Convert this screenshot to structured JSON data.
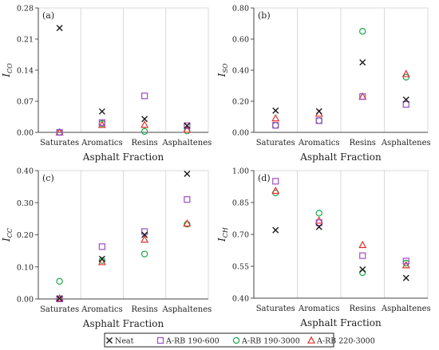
{
  "legend": [
    {
      "name": "Neat",
      "marker": "x",
      "color": "#1a1a1a"
    },
    {
      "name": "A-RB 190-600",
      "marker": "square",
      "color": "#9b4fc8"
    },
    {
      "name": "A-RB 190-3000",
      "marker": "circle",
      "color": "#1aa84a"
    },
    {
      "name": "A-RB 220-3000",
      "marker": "triangle",
      "color": "#e0322c"
    }
  ],
  "chart_data": [
    {
      "type": "scatter",
      "panel_label": "(a)",
      "categories": [
        "Saturates",
        "Aromatics",
        "Resins",
        "Asphaltenes"
      ],
      "xlabel": "Asphalt Fraction",
      "ylabel": "I",
      "ylabel_sub": "CO",
      "ylim": [
        0,
        0.28
      ],
      "yticks": [
        "0.00",
        "0.07",
        "0.14",
        "0.21",
        "0.28"
      ],
      "series": [
        {
          "name": "Neat",
          "values": [
            0.235,
            0.047,
            0.03,
            0.015
          ]
        },
        {
          "name": "A-RB 190-600",
          "values": [
            0.0,
            0.022,
            0.082,
            0.015
          ]
        },
        {
          "name": "A-RB 190-3000",
          "values": [
            0.0,
            0.02,
            0.002,
            0.003
          ]
        },
        {
          "name": "A-RB 220-3000",
          "values": [
            0.0,
            0.017,
            0.017,
            0.006
          ]
        }
      ]
    },
    {
      "type": "scatter",
      "panel_label": "(b)",
      "categories": [
        "Saturates",
        "Aromatics",
        "Resins",
        "Asphaltenes"
      ],
      "xlabel": "Asphalt Fraction",
      "ylabel": "I",
      "ylabel_sub": "SO",
      "ylim": [
        0,
        0.8
      ],
      "yticks": [
        "0.00",
        "0.20",
        "0.40",
        "0.60",
        "0.80"
      ],
      "series": [
        {
          "name": "Neat",
          "values": [
            0.14,
            0.135,
            0.45,
            0.21
          ]
        },
        {
          "name": "A-RB 190-600",
          "values": [
            0.045,
            0.075,
            0.23,
            0.18
          ]
        },
        {
          "name": "A-RB 190-3000",
          "values": [
            0.045,
            0.075,
            0.65,
            0.355
          ]
        },
        {
          "name": "A-RB 220-3000",
          "values": [
            0.09,
            0.12,
            0.23,
            0.375
          ]
        }
      ]
    },
    {
      "type": "scatter",
      "panel_label": "(c)",
      "categories": [
        "Saturates",
        "Aromatics",
        "Resins",
        "Asphaltenes"
      ],
      "xlabel": "Asphalt Fraction",
      "ylabel": "I",
      "ylabel_sub": "CC",
      "ylim": [
        0,
        0.4
      ],
      "yticks": [
        "0.00",
        "0.10",
        "0.20",
        "0.30",
        "0.40"
      ],
      "series": [
        {
          "name": "Neat",
          "values": [
            0.002,
            0.125,
            0.2,
            0.39
          ]
        },
        {
          "name": "A-RB 190-600",
          "values": [
            0.0,
            0.163,
            0.21,
            0.31
          ]
        },
        {
          "name": "A-RB 190-3000",
          "values": [
            0.055,
            0.12,
            0.14,
            0.233
          ]
        },
        {
          "name": "A-RB 220-3000",
          "values": [
            0.002,
            0.115,
            0.185,
            0.235
          ]
        }
      ]
    },
    {
      "type": "scatter",
      "panel_label": "(d)",
      "categories": [
        "Saturates",
        "Aromatics",
        "Resins",
        "Asphaltenes"
      ],
      "xlabel": "Asphalt Fraction",
      "ylabel": "I",
      "ylabel_sub": "CH",
      "ylim": [
        0.4,
        1.0
      ],
      "yticks": [
        "0.40",
        "0.55",
        "0.70",
        "0.85",
        "1.00"
      ],
      "series": [
        {
          "name": "Neat",
          "values": [
            0.72,
            0.735,
            0.535,
            0.495
          ]
        },
        {
          "name": "A-RB 190-600",
          "values": [
            0.95,
            0.755,
            0.6,
            0.575
          ]
        },
        {
          "name": "A-RB 190-3000",
          "values": [
            0.895,
            0.8,
            0.52,
            0.565
          ]
        },
        {
          "name": "A-RB 220-3000",
          "values": [
            0.905,
            0.765,
            0.65,
            0.555
          ]
        }
      ]
    }
  ]
}
